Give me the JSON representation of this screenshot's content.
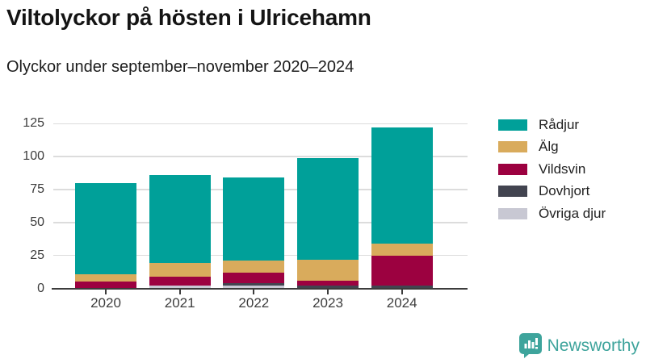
{
  "header": {
    "title": "Viltolyckor på hösten i Ulricehamn",
    "subtitle": "Olyckor under september–november 2020–2024"
  },
  "chart_data": {
    "type": "bar",
    "stacked": true,
    "title": "Viltolyckor på hösten i Ulricehamn",
    "subtitle": "Olyckor under september–november 2020–2024",
    "categories": [
      "2020",
      "2021",
      "2022",
      "2023",
      "2024"
    ],
    "series": [
      {
        "name": "Rådjur",
        "color": "#00A099",
        "values": [
          69,
          67,
          63,
          77,
          88
        ]
      },
      {
        "name": "Älg",
        "color": "#D9AB5C",
        "values": [
          6,
          10,
          9,
          16,
          9
        ]
      },
      {
        "name": "Vildsvin",
        "color": "#9C0140",
        "values": [
          5,
          7,
          8,
          4,
          23
        ]
      },
      {
        "name": "Dovhjort",
        "color": "#424450",
        "values": [
          0,
          0,
          2,
          2,
          2
        ]
      },
      {
        "name": "Övriga djur",
        "color": "#C8C8D3",
        "values": [
          0,
          2,
          2,
          0,
          0
        ]
      }
    ],
    "totals": [
      80,
      86,
      84,
      99,
      122
    ],
    "ylim": [
      0,
      125
    ],
    "yticks": [
      0,
      25,
      50,
      75,
      100,
      125
    ],
    "grid": true,
    "legend_position": "right",
    "stack_order_bottom_to_top": [
      "Övriga djur",
      "Dovhjort",
      "Vildsvin",
      "Älg",
      "Rådjur"
    ]
  },
  "footer": {
    "brand": "Newsworthy",
    "brand_color": "#3EA49C"
  }
}
